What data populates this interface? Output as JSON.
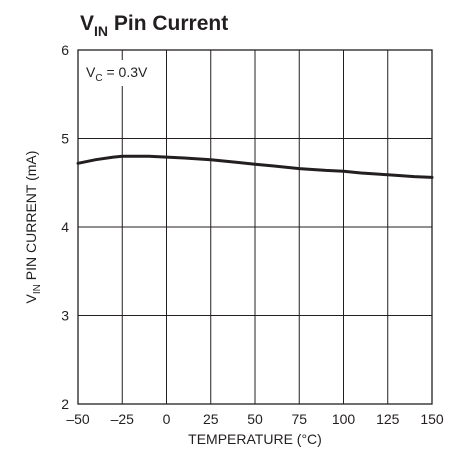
{
  "chart_data": {
    "type": "line",
    "title_main": "V",
    "title_sub": "IN",
    "title_rest": " Pin Current",
    "xlabel": "TEMPERATURE (°C)",
    "ylabel_main": "V",
    "ylabel_sub": "IN",
    "ylabel_rest": " PIN CURRENT (mA)",
    "annotation_main": "V",
    "annotation_sub": "C",
    "annotation_rest": " = 0.3V",
    "xlim": [
      -50,
      150
    ],
    "ylim": [
      2,
      6
    ],
    "x_ticks": [
      -50,
      -25,
      0,
      25,
      50,
      75,
      100,
      125,
      150
    ],
    "x_tick_labels": [
      "–50",
      "–25",
      "0",
      "25",
      "50",
      "75",
      "100",
      "125",
      "150"
    ],
    "y_ticks": [
      2,
      3,
      4,
      5,
      6
    ],
    "y_tick_labels": [
      "2",
      "3",
      "4",
      "5",
      "6"
    ],
    "grid": true,
    "series": [
      {
        "x": [
          -50,
          -40,
          -30,
          -25,
          -20,
          -10,
          0,
          10,
          25,
          40,
          50,
          60,
          75,
          90,
          100,
          110,
          125,
          140,
          150
        ],
        "values": [
          4.72,
          4.76,
          4.79,
          4.8,
          4.8,
          4.8,
          4.79,
          4.78,
          4.76,
          4.73,
          4.71,
          4.69,
          4.66,
          4.64,
          4.63,
          4.61,
          4.59,
          4.57,
          4.56
        ]
      }
    ],
    "colors": {
      "line": "#231f20",
      "grid": "#231f20",
      "background": "#ffffff"
    }
  }
}
